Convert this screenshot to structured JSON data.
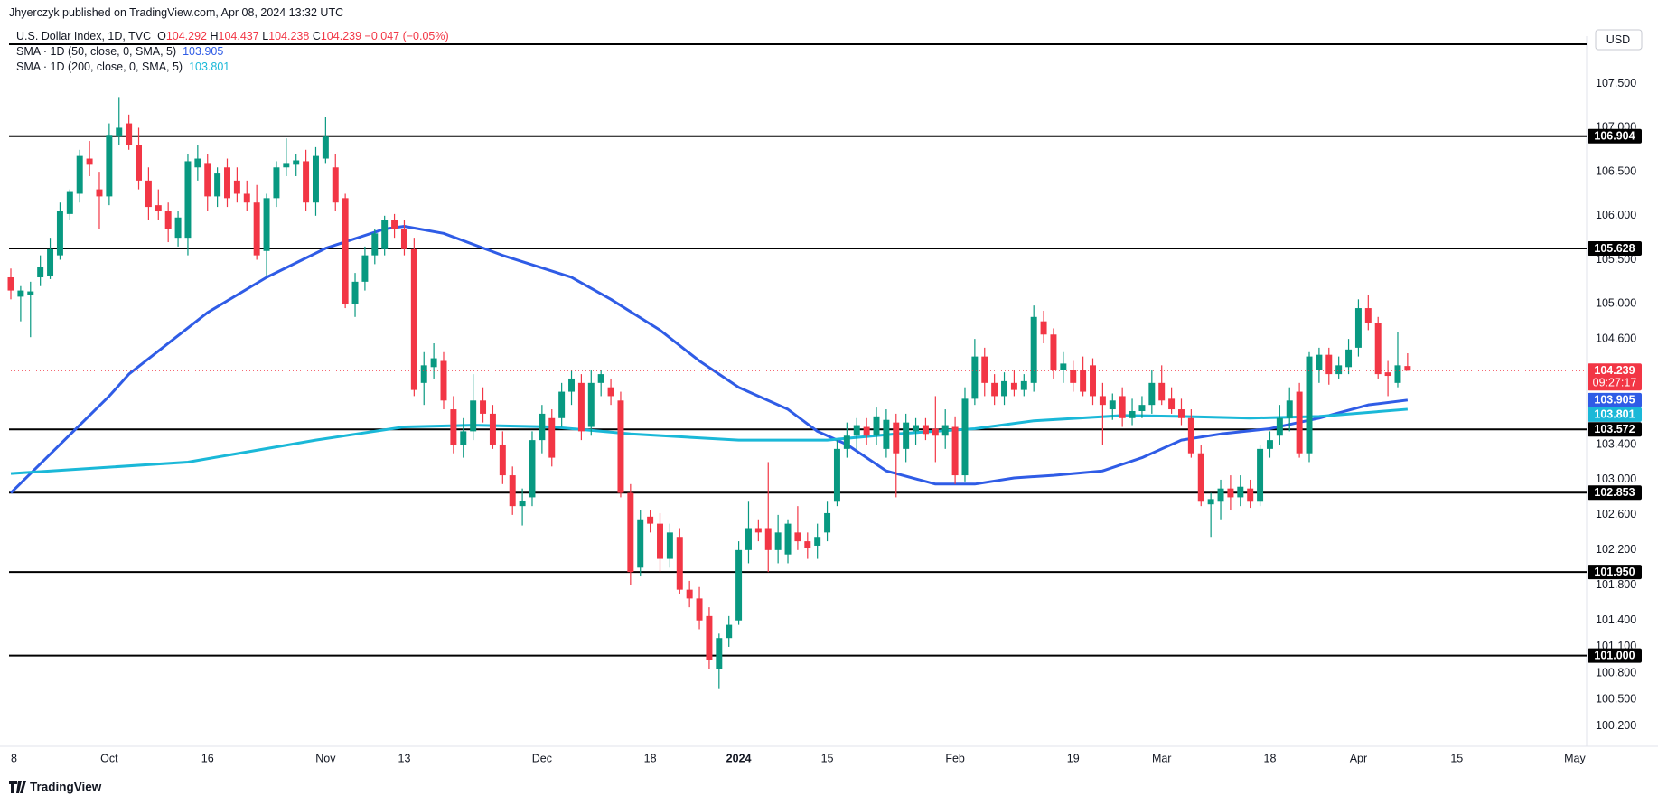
{
  "chart_data": {
    "type": "candlestick",
    "publisher": "Jhyerczyk published on TradingView.com, Apr 08, 2024 13:32 UTC",
    "title": "U.S. Dollar Index, 1D, TVC",
    "ohlc_letters": [
      "O",
      "H",
      "L",
      "C"
    ],
    "change": "−0.047 (−0.05%)",
    "currency": "USD",
    "countdown": "09:27:17",
    "footer": "TradingView",
    "up_color": "#089981",
    "down_color": "#f23645",
    "grid": false,
    "xlim": [
      0,
      160.2
    ],
    "xticks": [
      {
        "value": 0,
        "label": "8"
      },
      {
        "value": 10,
        "label": "Oct"
      },
      {
        "value": 20,
        "label": "16"
      },
      {
        "value": 32,
        "label": "Nov"
      },
      {
        "value": 40,
        "label": "13"
      },
      {
        "value": 54,
        "label": "Dec"
      },
      {
        "value": 65,
        "label": "18"
      },
      {
        "value": 74,
        "label": "2024"
      },
      {
        "value": 83,
        "label": "15"
      },
      {
        "value": 96,
        "label": "Feb"
      },
      {
        "value": 108,
        "label": "19"
      },
      {
        "value": 117,
        "label": "Mar"
      },
      {
        "value": 128,
        "label": "18"
      },
      {
        "value": 137,
        "label": "Apr"
      },
      {
        "value": 147,
        "label": "15"
      },
      {
        "value": 159,
        "label": "May"
      }
    ],
    "ylim": [
      99.98,
      107.97
    ],
    "yticks": [
      {
        "value": 107.5,
        "label": "107.500"
      },
      {
        "value": 107.0,
        "label": "107.000"
      },
      {
        "value": 106.5,
        "label": "106.500"
      },
      {
        "value": 106.0,
        "label": "106.000"
      },
      {
        "value": 105.5,
        "label": "105.500"
      },
      {
        "value": 105.0,
        "label": "105.000"
      },
      {
        "value": 104.6,
        "label": "104.600"
      },
      {
        "value": 103.4,
        "label": "103.400"
      },
      {
        "value": 103.0,
        "label": "103.000"
      },
      {
        "value": 102.6,
        "label": "102.600"
      },
      {
        "value": 102.2,
        "label": "102.200"
      },
      {
        "value": 101.8,
        "label": "101.800"
      },
      {
        "value": 101.4,
        "label": "101.400"
      },
      {
        "value": 101.1,
        "label": "101.100"
      },
      {
        "value": 100.8,
        "label": "100.800"
      },
      {
        "value": 100.5,
        "label": "100.500"
      },
      {
        "value": 100.2,
        "label": "100.200"
      }
    ],
    "levels": [
      {
        "value": 106.904,
        "label": "106.904"
      },
      {
        "value": 105.628,
        "label": "105.628"
      },
      {
        "value": 103.572,
        "label": "103.572"
      },
      {
        "value": 102.853,
        "label": "102.853"
      },
      {
        "value": 101.95,
        "label": "101.950"
      },
      {
        "value": 101.0,
        "label": "101.000"
      }
    ],
    "open": [
      105.3,
      105.08,
      105.1,
      105.3,
      105.32,
      105.55,
      106.02,
      106.25,
      106.65,
      106.3,
      106.22,
      106.9,
      107.05,
      106.8,
      106.4,
      106.12,
      106.05,
      105.75,
      105.75,
      106.55,
      106.6,
      106.22,
      106.55,
      106.4,
      106.25,
      106.15,
      105.6,
      106.2,
      106.55,
      106.58,
      106.62,
      106.15,
      106.65,
      106.55,
      106.2,
      105.0,
      105.25,
      105.55,
      105.62,
      105.95,
      105.85,
      105.62,
      104.1,
      104.28,
      104.35,
      103.8,
      103.4,
      103.55,
      103.9,
      103.75,
      103.4,
      103.05,
      102.7,
      102.8,
      103.45,
      103.7,
      103.7,
      104.0,
      104.1,
      103.6,
      104.1,
      104.05,
      103.9,
      102.85,
      102.0,
      102.58,
      102.5,
      102.1,
      102.35,
      101.75,
      101.65,
      101.45,
      100.85,
      101.2,
      101.4,
      102.2,
      102.45,
      102.45,
      102.2,
      102.15,
      102.4,
      102.3,
      102.25,
      102.4,
      102.75,
      103.35,
      103.5,
      103.6,
      103.5,
      103.35,
      103.65,
      103.35,
      103.55,
      103.62,
      103.58,
      103.5,
      103.6,
      103.05,
      103.92,
      104.4,
      104.1,
      103.95,
      104.1,
      104.02,
      104.1,
      104.8,
      104.65,
      104.25,
      104.25,
      104.25,
      104.3,
      103.95,
      103.8,
      103.95,
      103.7,
      103.78,
      103.85,
      104.1,
      103.92,
      103.8,
      103.7,
      103.3,
      102.72,
      102.75,
      102.9,
      102.8,
      102.9,
      102.75,
      103.35,
      103.5,
      103.7,
      104.0,
      103.3,
      104.25,
      104.42,
      104.2,
      104.28,
      104.5,
      104.95,
      104.78,
      104.22,
      104.1,
      104.292
    ],
    "high": [
      105.4,
      105.2,
      105.25,
      105.55,
      105.75,
      106.15,
      106.3,
      106.75,
      106.85,
      106.5,
      107.05,
      107.35,
      107.15,
      107.0,
      106.55,
      106.3,
      106.15,
      106.05,
      106.7,
      106.8,
      106.7,
      106.55,
      106.65,
      106.55,
      106.4,
      106.35,
      106.25,
      106.62,
      106.88,
      106.7,
      106.75,
      106.78,
      107.12,
      106.7,
      106.25,
      105.35,
      105.65,
      105.85,
      106.0,
      106.02,
      105.95,
      105.75,
      104.45,
      104.55,
      104.45,
      103.95,
      103.7,
      104.2,
      104.05,
      103.85,
      103.55,
      103.15,
      102.9,
      103.55,
      103.85,
      103.8,
      104.1,
      104.25,
      104.2,
      104.25,
      104.25,
      104.15,
      104.0,
      102.95,
      102.65,
      102.65,
      102.62,
      102.5,
      102.45,
      101.85,
      101.78,
      101.55,
      101.25,
      101.45,
      102.3,
      102.75,
      102.55,
      103.2,
      102.6,
      102.55,
      102.7,
      102.4,
      102.5,
      102.75,
      103.45,
      103.65,
      103.7,
      103.7,
      103.82,
      103.8,
      103.75,
      103.75,
      103.7,
      103.7,
      103.95,
      103.8,
      103.72,
      104.05,
      104.6,
      104.5,
      104.2,
      104.22,
      104.25,
      104.2,
      104.98,
      104.92,
      104.72,
      104.45,
      104.35,
      104.4,
      104.38,
      104.1,
      103.98,
      104.05,
      103.92,
      103.95,
      104.25,
      104.3,
      104.05,
      103.92,
      103.8,
      103.4,
      102.85,
      103.0,
      103.05,
      103.05,
      103.0,
      103.4,
      103.55,
      103.85,
      104.05,
      104.1,
      104.45,
      104.5,
      104.5,
      104.4,
      104.6,
      105.05,
      105.1,
      104.85,
      104.35,
      104.68,
      104.437
    ],
    "low": [
      105.05,
      104.8,
      104.62,
      105.2,
      105.28,
      105.5,
      105.95,
      106.15,
      106.45,
      105.85,
      106.12,
      106.8,
      106.75,
      106.3,
      105.95,
      105.95,
      105.7,
      105.65,
      105.55,
      106.4,
      106.05,
      106.1,
      106.1,
      106.15,
      106.05,
      105.5,
      105.32,
      106.1,
      106.45,
      106.45,
      106.05,
      106.0,
      106.6,
      106.05,
      104.95,
      104.85,
      105.15,
      105.45,
      105.55,
      105.75,
      105.55,
      103.95,
      103.85,
      104.15,
      103.8,
      103.3,
      103.25,
      103.45,
      103.65,
      103.35,
      102.95,
      102.6,
      102.48,
      102.7,
      103.3,
      103.15,
      103.6,
      103.85,
      103.45,
      103.5,
      103.95,
      103.85,
      102.8,
      101.8,
      101.9,
      102.4,
      101.95,
      102.0,
      101.7,
      101.55,
      101.3,
      100.85,
      100.62,
      101.1,
      101.35,
      102.05,
      102.3,
      101.95,
      102.05,
      102.05,
      102.2,
      102.1,
      102.1,
      102.3,
      102.7,
      103.25,
      103.35,
      103.4,
      103.4,
      103.25,
      102.8,
      103.2,
      103.4,
      103.45,
      103.2,
      103.35,
      102.95,
      102.98,
      103.85,
      103.95,
      103.85,
      103.85,
      103.95,
      103.95,
      104.0,
      104.55,
      104.15,
      104.1,
      104.0,
      103.95,
      103.85,
      103.4,
      103.68,
      103.6,
      103.62,
      103.7,
      103.75,
      103.85,
      103.75,
      103.62,
      103.25,
      102.7,
      102.35,
      102.55,
      102.65,
      102.7,
      102.68,
      102.7,
      103.25,
      103.4,
      103.55,
      103.25,
      103.2,
      104.1,
      104.08,
      104.15,
      104.2,
      104.4,
      104.7,
      104.15,
      103.95,
      104.05,
      104.238
    ],
    "close": [
      105.15,
      105.15,
      105.14,
      105.42,
      105.62,
      106.05,
      106.28,
      106.68,
      106.58,
      106.22,
      106.92,
      107.0,
      106.8,
      106.4,
      106.1,
      106.05,
      105.85,
      105.98,
      106.62,
      106.65,
      106.22,
      106.48,
      106.2,
      106.25,
      106.15,
      105.55,
      106.2,
      106.55,
      106.6,
      106.63,
      106.15,
      106.68,
      106.9,
      106.15,
      105.0,
      105.25,
      105.55,
      105.8,
      105.95,
      105.85,
      105.62,
      104.02,
      104.3,
      104.38,
      103.9,
      103.4,
      103.55,
      103.9,
      103.75,
      103.4,
      103.05,
      102.7,
      102.76,
      103.45,
      103.75,
      103.25,
      104.0,
      104.15,
      103.55,
      104.1,
      104.2,
      103.95,
      102.85,
      101.95,
      102.55,
      102.5,
      102.1,
      102.4,
      101.75,
      101.65,
      101.4,
      100.95,
      101.2,
      101.35,
      102.2,
      102.45,
      102.4,
      102.2,
      102.4,
      102.5,
      102.3,
      102.22,
      102.35,
      102.62,
      103.35,
      103.5,
      103.62,
      103.5,
      103.72,
      103.68,
      103.3,
      103.65,
      103.62,
      103.52,
      103.5,
      103.62,
      103.05,
      103.92,
      104.4,
      104.1,
      103.95,
      104.12,
      104.02,
      104.12,
      104.85,
      104.65,
      104.25,
      104.32,
      104.1,
      104.0,
      103.95,
      103.85,
      103.9,
      103.7,
      103.78,
      103.85,
      104.1,
      103.9,
      103.8,
      103.7,
      103.3,
      102.75,
      102.78,
      102.9,
      102.8,
      102.92,
      102.75,
      103.35,
      103.45,
      103.7,
      103.9,
      103.3,
      104.4,
      104.42,
      104.2,
      104.3,
      104.48,
      104.95,
      104.78,
      104.2,
      104.18,
      104.3,
      104.239
    ],
    "series": [
      {
        "name": "SMA · 1D (50, close, 0, SMA, 5)",
        "color": "#2f5ce6",
        "x": [
          0,
          5,
          10,
          12,
          20,
          26,
          32,
          38,
          40,
          44,
          50,
          57,
          61,
          66,
          70,
          74,
          79,
          82,
          85,
          89,
          94,
          98,
          102,
          106,
          111,
          115,
          119,
          123,
          128,
          133,
          138,
          142
        ],
        "values": [
          102.85,
          103.4,
          103.95,
          104.2,
          104.9,
          105.3,
          105.63,
          105.85,
          105.88,
          105.8,
          105.55,
          105.3,
          105.05,
          104.7,
          104.35,
          104.05,
          103.8,
          103.55,
          103.4,
          103.1,
          102.95,
          102.95,
          103.02,
          103.05,
          103.1,
          103.25,
          103.45,
          103.52,
          103.58,
          103.7,
          103.85,
          103.905
        ]
      },
      {
        "name": "SMA · 1D (200, close, 0, SMA, 5)",
        "color": "#1ab8d8",
        "x": [
          0,
          18,
          31,
          40,
          47,
          55,
          63,
          74,
          83,
          90,
          98,
          104,
          113,
          119,
          126,
          133,
          142
        ],
        "values": [
          103.07,
          103.2,
          103.45,
          103.6,
          103.62,
          103.6,
          103.52,
          103.45,
          103.45,
          103.52,
          103.58,
          103.67,
          103.73,
          103.72,
          103.7,
          103.72,
          103.801
        ]
      }
    ]
  }
}
